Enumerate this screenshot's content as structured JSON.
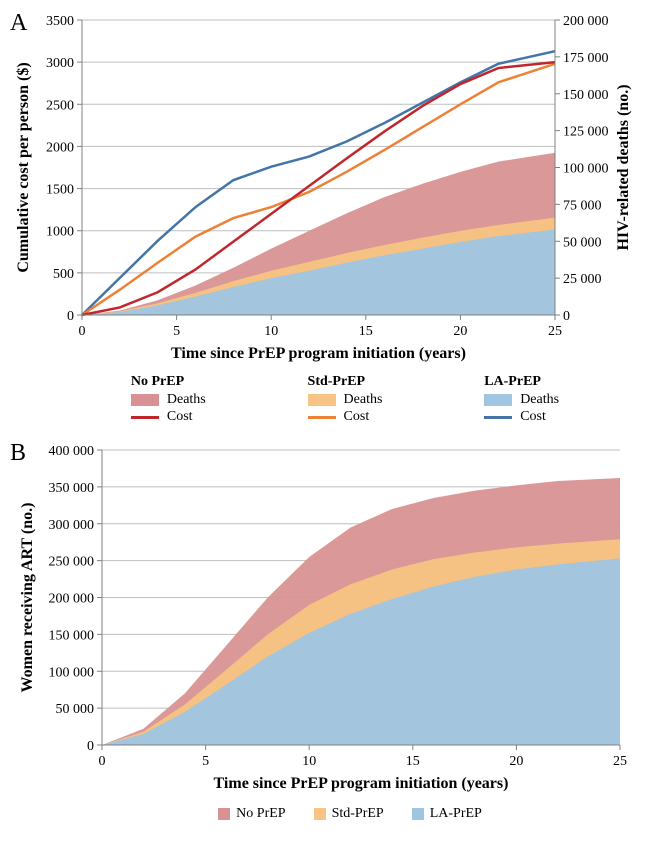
{
  "panelA": {
    "label": "A",
    "xlabel": "Time since PrEP program initiation (years)",
    "ylabel_left": "Cumulative cost  per person ($)",
    "ylabel_right": "HIV-related deaths (no.)",
    "x_ticks": [
      0,
      5,
      10,
      15,
      20,
      25
    ],
    "y_left_ticks": [
      0,
      500,
      1000,
      1500,
      2000,
      2500,
      3000,
      3500
    ],
    "y_right_ticks": [
      "0",
      "25 000",
      "50 000",
      "75 000",
      "100 000",
      "125 000",
      "150 000",
      "175 000",
      "200 000"
    ],
    "y_right_values": [
      0,
      25000,
      50000,
      75000,
      100000,
      125000,
      150000,
      175000,
      200000
    ],
    "xlim": [
      0,
      25
    ],
    "ylim_left": [
      0,
      3500
    ],
    "ylim_right": [
      0,
      200000
    ],
    "colors": {
      "noPrEP_area": "#d99294",
      "stdPrEP_area": "#f7c483",
      "laPrEP_area": "#9ec5e2",
      "noPrEP_line": "#c0272d",
      "stdPrEP_line": "#ed8137",
      "laPrEP_line": "#4475a7",
      "grid": "#bfbfbf",
      "axis": "#808080"
    },
    "series": {
      "deaths_noPrEP": {
        "x": [
          0,
          2,
          4,
          6,
          8,
          10,
          12,
          14,
          16,
          18,
          20,
          22,
          25
        ],
        "y": [
          0,
          3000,
          10000,
          20000,
          32000,
          45000,
          57000,
          69000,
          80000,
          89000,
          97000,
          104000,
          110000
        ]
      },
      "deaths_stdPrEP": {
        "x": [
          0,
          2,
          4,
          6,
          8,
          10,
          12,
          14,
          16,
          18,
          20,
          22,
          25
        ],
        "y": [
          0,
          2500,
          8000,
          15000,
          23000,
          30000,
          36000,
          42000,
          47500,
          52500,
          57000,
          61000,
          66000
        ]
      },
      "deaths_laPrEP": {
        "x": [
          0,
          2,
          4,
          6,
          8,
          10,
          12,
          14,
          16,
          18,
          20,
          22,
          25
        ],
        "y": [
          0,
          2000,
          6500,
          12500,
          19000,
          25000,
          30000,
          35500,
          40500,
          45000,
          49500,
          53500,
          58000
        ]
      },
      "cost_noPrEP": {
        "x": [
          0,
          2,
          4,
          6,
          8,
          10,
          12,
          14,
          16,
          18,
          20,
          22,
          25
        ],
        "y": [
          0,
          90,
          270,
          540,
          870,
          1200,
          1530,
          1860,
          2180,
          2480,
          2740,
          2930,
          3000
        ]
      },
      "cost_stdPrEP": {
        "x": [
          0,
          2,
          4,
          6,
          8,
          10,
          12,
          14,
          16,
          18,
          20,
          22,
          25
        ],
        "y": [
          0,
          300,
          620,
          930,
          1150,
          1280,
          1460,
          1700,
          1960,
          2230,
          2500,
          2760,
          2980
        ]
      },
      "cost_laPrEP": {
        "x": [
          0,
          2,
          4,
          6,
          8,
          10,
          12,
          14,
          16,
          18,
          20,
          22,
          25
        ],
        "y": [
          0,
          440,
          880,
          1280,
          1600,
          1760,
          1880,
          2060,
          2280,
          2520,
          2760,
          2980,
          3130
        ]
      }
    },
    "legend": {
      "groups": [
        {
          "header": "No PrEP",
          "area_color": "#d99294",
          "line_color": "#c0272d",
          "area_label": "Deaths",
          "line_label": "Cost"
        },
        {
          "header": "Std-PrEP",
          "area_color": "#f7c483",
          "line_color": "#ed8137",
          "area_label": "Deaths",
          "line_label": "Cost"
        },
        {
          "header": "LA-PrEP",
          "area_color": "#9ec5e2",
          "line_color": "#4475a7",
          "area_label": "Deaths",
          "line_label": "Cost"
        }
      ]
    }
  },
  "panelB": {
    "label": "B",
    "xlabel": "Time since PrEP program initiation (years)",
    "ylabel": "Women receiving ART (no.)",
    "x_ticks": [
      0,
      5,
      10,
      15,
      20,
      25
    ],
    "y_ticks": [
      "0",
      "50 000",
      "100 000",
      "150 000",
      "200 000",
      "250 000",
      "300 000",
      "350 000",
      "400 000"
    ],
    "y_values": [
      0,
      50000,
      100000,
      150000,
      200000,
      250000,
      300000,
      350000,
      400000
    ],
    "xlim": [
      0,
      25
    ],
    "ylim": [
      0,
      400000
    ],
    "colors": {
      "noPrEP_area": "#d99294",
      "stdPrEP_area": "#f7c483",
      "laPrEP_area": "#9ec5e2",
      "grid": "#bfbfbf",
      "axis": "#808080"
    },
    "series": {
      "art_noPrEP": {
        "x": [
          0,
          2,
          4,
          6,
          8,
          10,
          12,
          14,
          16,
          18,
          20,
          22,
          25
        ],
        "y": [
          0,
          22000,
          70000,
          135000,
          200000,
          255000,
          295000,
          320000,
          335000,
          345000,
          352000,
          358000,
          362000
        ]
      },
      "art_stdPrEP": {
        "x": [
          0,
          2,
          4,
          6,
          8,
          10,
          12,
          14,
          16,
          18,
          20,
          22,
          25
        ],
        "y": [
          0,
          18000,
          55000,
          102000,
          150000,
          190000,
          218000,
          238000,
          252000,
          261000,
          268000,
          273000,
          279000
        ]
      },
      "art_laPrEP": {
        "x": [
          0,
          2,
          4,
          6,
          8,
          10,
          12,
          14,
          16,
          18,
          20,
          22,
          25
        ],
        "y": [
          0,
          15000,
          45000,
          82000,
          120000,
          152000,
          178000,
          198000,
          215000,
          228000,
          238000,
          245000,
          253000
        ]
      }
    },
    "legend": {
      "items": [
        {
          "label": "No PrEP",
          "color": "#d99294"
        },
        {
          "label": "Std-PrEP",
          "color": "#f7c483"
        },
        {
          "label": "LA-PrEP",
          "color": "#9ec5e2"
        }
      ]
    }
  },
  "style": {
    "line_width": 2.5,
    "tick_fontsize": 14,
    "label_fontsize": 16
  }
}
